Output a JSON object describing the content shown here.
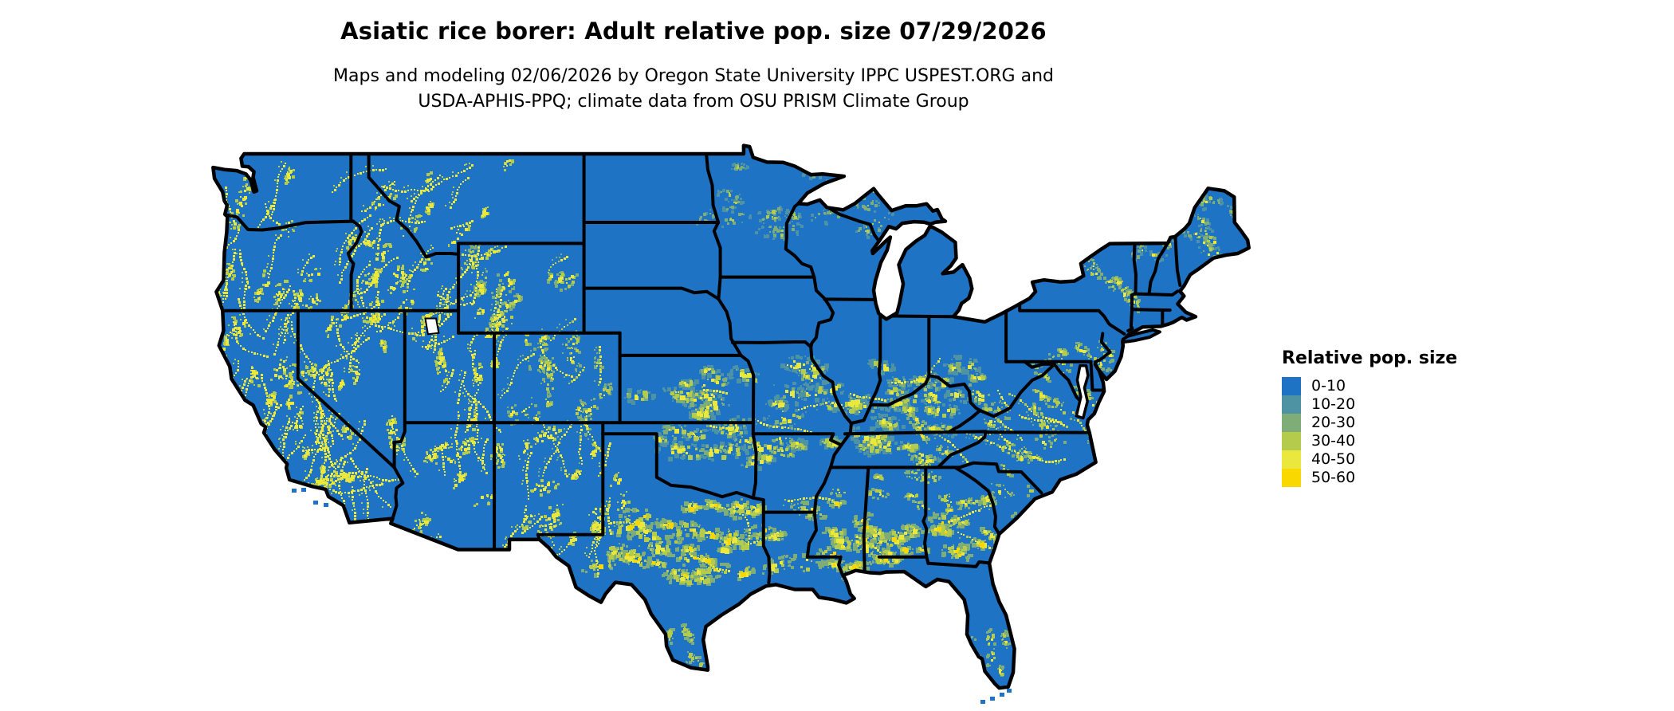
{
  "title": "Asiatic rice borer: Adult relative pop. size 07/29/2026",
  "subtitle_line1": "Maps and modeling 02/06/2026 by Oregon State University IPPC USPEST.ORG and",
  "subtitle_line2": "USDA-APHIS-PPQ; climate data from OSU PRISM Climate Group",
  "map": {
    "region_shown": "Contiguous United States",
    "base_color": "#1E73C4",
    "border_color": "#000000",
    "water_color": "#FFFFFF"
  },
  "legend": {
    "title": "Relative pop. size",
    "items": [
      {
        "label": "0-10",
        "color": "#1E73C4"
      },
      {
        "label": "10-20",
        "color": "#4E93A3"
      },
      {
        "label": "20-30",
        "color": "#7FAD78"
      },
      {
        "label": "30-40",
        "color": "#B5CB4B"
      },
      {
        "label": "40-50",
        "color": "#EAE83D"
      },
      {
        "label": "50-60",
        "color": "#F9D800"
      }
    ]
  }
}
